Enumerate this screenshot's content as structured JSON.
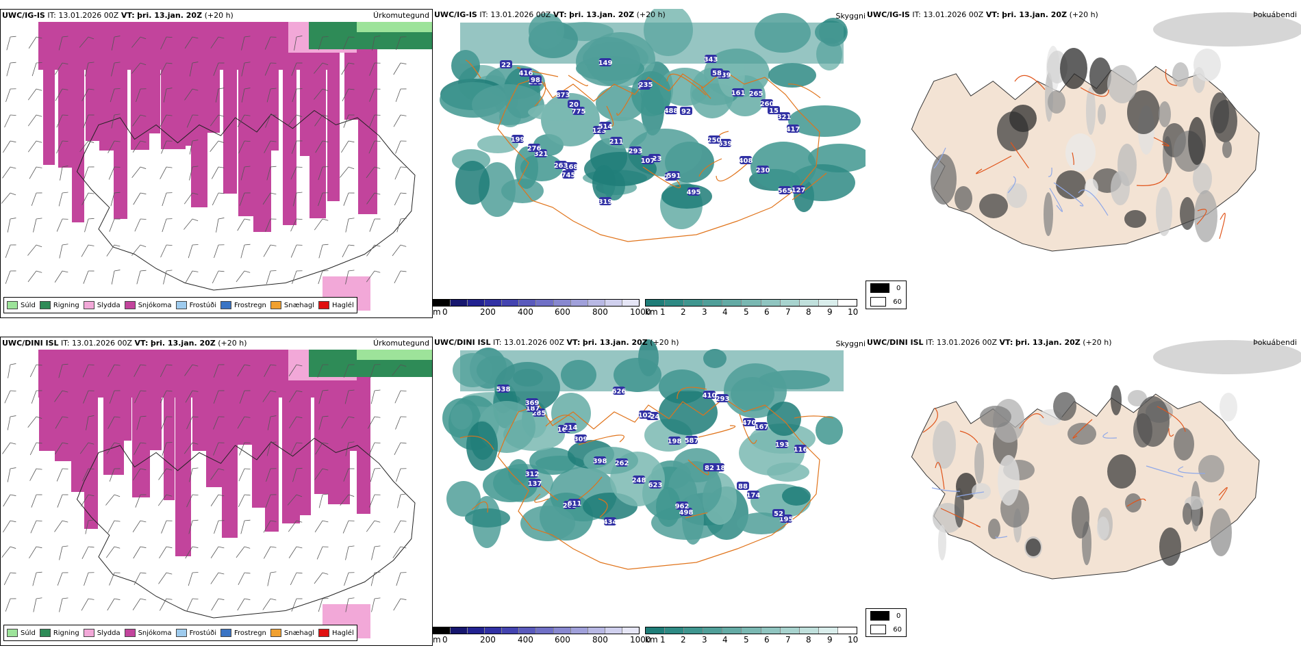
{
  "rows": [
    {
      "model": "UWC/IG-IS",
      "it_label": "IT:",
      "it": "13.01.2026 00Z",
      "vt_label": "VT:",
      "vt": "þri. 13.jan. 20Z",
      "lead": "(+20 h)",
      "peaks": [
        "22",
        "252",
        "775",
        "211",
        "523",
        "495",
        "239",
        "260",
        "417",
        "321",
        "745",
        "149",
        "121",
        "92",
        "639",
        "230",
        "127",
        "98",
        "20",
        "123",
        "107",
        "202",
        "58",
        "265",
        "321",
        "276",
        "168",
        "319",
        "235",
        "488",
        "250",
        "408",
        "565",
        "416",
        "873",
        "514",
        "293",
        "591",
        "343",
        "161",
        "15",
        "199",
        "263"
      ]
    },
    {
      "model": "UWC/DINI ISL",
      "it_label": "IT:",
      "it": "13.01.2026 00Z",
      "vt_label": "VT:",
      "vt": "þri. 13.jan. 20Z",
      "lead": "(+20 h)",
      "peaks": [
        "538",
        "285",
        "309",
        "262",
        "623",
        "498",
        "293",
        "167",
        "116",
        "137",
        "263",
        "626",
        "824",
        "587",
        "118",
        "174",
        "195",
        "187",
        "166",
        "398",
        "248",
        "962",
        "410",
        "470",
        "193",
        "312",
        "611",
        "434",
        "102",
        "198",
        "82",
        "88",
        "52",
        "369",
        "214"
      ]
    }
  ],
  "panel_titles": {
    "precip": "Úrkomutegund",
    "visibility": "Skyggni",
    "fog": "Þokuábendi"
  },
  "precip_legend": [
    {
      "label": "Súld",
      "color": "#9de39a"
    },
    {
      "label": "Rigning",
      "color": "#2e8b57"
    },
    {
      "label": "Slydda",
      "color": "#f2a8d8"
    },
    {
      "label": "Snjókoma",
      "color": "#c2449c"
    },
    {
      "label": "Frostúði",
      "color": "#9ecbee"
    },
    {
      "label": "Frostregn",
      "color": "#3a74c4"
    },
    {
      "label": "Snæhagl",
      "color": "#f0a030"
    },
    {
      "label": "Haglél",
      "color": "#e01010"
    }
  ],
  "elevation_bar": {
    "unit": "m",
    "ticks": [
      "0",
      "200",
      "400",
      "600",
      "800",
      "1000"
    ],
    "colors": [
      "#000000",
      "#16166e",
      "#222291",
      "#3131a4",
      "#4444b0",
      "#5a5abc",
      "#7070c6",
      "#8888d0",
      "#a0a0da",
      "#b8b8e4",
      "#d0d0ee",
      "#e6e6f6"
    ]
  },
  "visibility_bar": {
    "unit": "km",
    "ticks": [
      "1",
      "2",
      "3",
      "4",
      "5",
      "6",
      "7",
      "8",
      "9",
      "10"
    ],
    "colors": [
      "#1f7d78",
      "#2e8a84",
      "#3f968f",
      "#509f99",
      "#64aba5",
      "#7ab8b2",
      "#90c5c0",
      "#a8d3ce",
      "#c0e0dc",
      "#daeeec",
      "#ffffff"
    ]
  },
  "fog_legend": [
    {
      "label": "0",
      "color": "#000000"
    },
    {
      "label": "60",
      "color": "#ffffff"
    }
  ]
}
